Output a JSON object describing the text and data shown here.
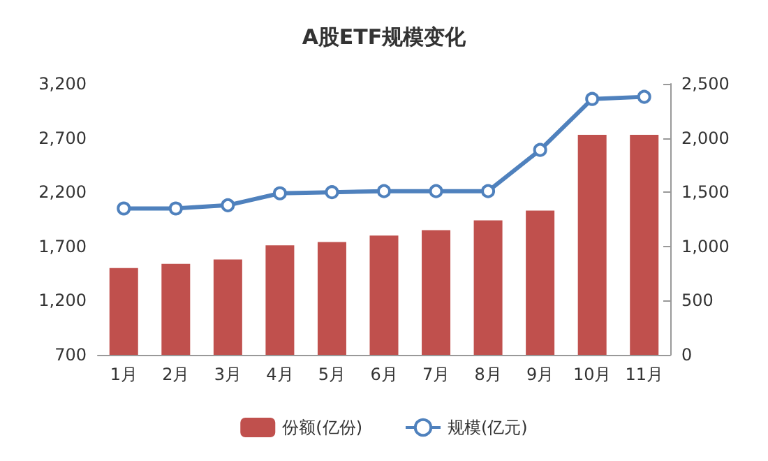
{
  "chart_data": {
    "type": "bar",
    "title": "A股ETF规模变化",
    "categories": [
      "1月",
      "2月",
      "3月",
      "4月",
      "5月",
      "6月",
      "7月",
      "8月",
      "9月",
      "10月",
      "11月"
    ],
    "series": [
      {
        "name": "份额(亿份)",
        "color": "#c0504d",
        "values": [
          1500,
          1540,
          1580,
          1710,
          1740,
          1800,
          1850,
          1940,
          2030,
          2730,
          2730
        ]
      },
      {
        "name": "规模(亿元)",
        "type": "line",
        "axis": "y2",
        "color": "#4f81bd",
        "marker": "circle",
        "values": [
          1350,
          1350,
          1380,
          1490,
          1500,
          1510,
          1510,
          1510,
          1890,
          2360,
          2380
        ]
      }
    ],
    "ylim": [
      700,
      3200
    ],
    "yticks": [
      700,
      {
        "value": 1200,
        "label": "1,200"
      },
      {
        "value": 1700,
        "label": "1,700"
      },
      {
        "value": 2200,
        "label": "2,200"
      },
      {
        "value": 2700,
        "label": "2,700"
      },
      {
        "value": 3200,
        "label": "3,200"
      }
    ],
    "y2lim": [
      0,
      2500
    ],
    "y2ticks": [
      0,
      500,
      {
        "value": 1000,
        "label": "1,000"
      },
      {
        "value": 1500,
        "label": "1,500"
      },
      {
        "value": 2000,
        "label": "2,000"
      },
      {
        "value": 2500,
        "label": "2,500"
      }
    ],
    "grid": false,
    "legend": "bottom"
  }
}
